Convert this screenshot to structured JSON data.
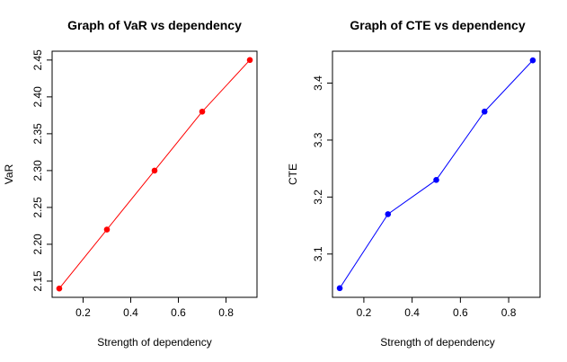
{
  "chart_data": [
    {
      "type": "line",
      "title": "Graph of VaR vs dependency",
      "xlabel": "Strength of dependency",
      "ylabel": "VaR",
      "x": [
        0.1,
        0.3,
        0.5,
        0.7,
        0.9
      ],
      "y": [
        2.14,
        2.22,
        2.3,
        2.38,
        2.45
      ],
      "xlim": [
        0.07,
        0.93
      ],
      "ylim": [
        2.128,
        2.462
      ],
      "xticks": [
        0.2,
        0.4,
        0.6,
        0.8
      ],
      "xtick_labels": [
        "0.2",
        "0.4",
        "0.6",
        "0.8"
      ],
      "yticks": [
        2.15,
        2.2,
        2.25,
        2.3,
        2.35,
        2.4,
        2.45
      ],
      "ytick_labels": [
        "2.15",
        "2.20",
        "2.25",
        "2.30",
        "2.35",
        "2.40",
        "2.45"
      ],
      "color": "#ff0000",
      "grid": false
    },
    {
      "type": "line",
      "title": "Graph of CTE vs dependency",
      "xlabel": "Strength of dependency",
      "ylabel": "CTE",
      "x": [
        0.1,
        0.3,
        0.5,
        0.7,
        0.9
      ],
      "y": [
        3.04,
        3.17,
        3.23,
        3.35,
        3.44
      ],
      "xlim": [
        0.07,
        0.93
      ],
      "ylim": [
        3.024,
        3.456
      ],
      "xticks": [
        0.2,
        0.4,
        0.6,
        0.8
      ],
      "xtick_labels": [
        "0.2",
        "0.4",
        "0.6",
        "0.8"
      ],
      "yticks": [
        3.1,
        3.2,
        3.3,
        3.4
      ],
      "ytick_labels": [
        "3.1",
        "3.2",
        "3.3",
        "3.4"
      ],
      "color": "#0000ff",
      "grid": false
    }
  ]
}
